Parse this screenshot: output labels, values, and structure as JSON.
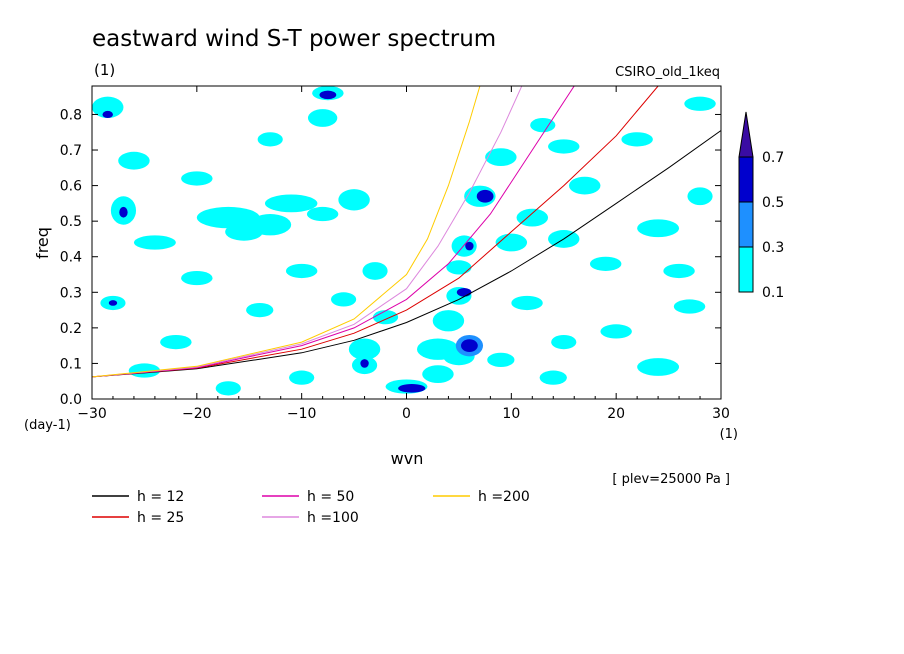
{
  "chart_data": {
    "type": "heatmap",
    "title": "eastward wind S-T power spectrum",
    "subtitle_left": "(1)",
    "subtitle_right": "CSIRO_old_1keq",
    "xlabel": "wvn",
    "ylabel": "freq",
    "x_unit": "(1)",
    "y_unit": "(day-1)",
    "xlim": [
      -30,
      30
    ],
    "ylim": [
      0,
      0.88
    ],
    "x_ticks": [
      -30,
      -20,
      -10,
      0,
      10,
      20,
      30
    ],
    "x_tick_labels": [
      "−30",
      "−20",
      "−10",
      "0",
      "10",
      "20",
      "30"
    ],
    "y_ticks": [
      0.0,
      0.1,
      0.2,
      0.3,
      0.4,
      0.5,
      0.6,
      0.7,
      0.8
    ],
    "y_tick_labels": [
      "0.0",
      "0.1",
      "0.2",
      "0.3",
      "0.4",
      "0.5",
      "0.6",
      "0.7",
      "0.8"
    ],
    "annotation": "[ plev=25000 Pa ]",
    "colorbar": {
      "levels": [
        0.1,
        0.3,
        0.5,
        0.7
      ],
      "labels": [
        "0.1",
        "0.3",
        "0.5",
        "0.7"
      ],
      "colors": [
        "#00ffff",
        "#1e90ff",
        "#0000cd",
        "#3a0ca3"
      ]
    },
    "dispersion_curves": [
      {
        "label": "h = 12",
        "h": 12,
        "color": "#000000",
        "x": [
          -30,
          -20,
          -10,
          -5,
          0,
          5,
          10,
          15,
          20,
          25,
          30
        ],
        "y": [
          0.062,
          0.085,
          0.13,
          0.165,
          0.215,
          0.28,
          0.36,
          0.45,
          0.55,
          0.65,
          0.755
        ]
      },
      {
        "label": "h = 25",
        "h": 25,
        "color": "#dd0000",
        "x": [
          -30,
          -20,
          -10,
          -5,
          0,
          5,
          10,
          15,
          20,
          24
        ],
        "y": [
          0.062,
          0.087,
          0.14,
          0.185,
          0.25,
          0.34,
          0.47,
          0.6,
          0.74,
          0.88
        ]
      },
      {
        "label": "h = 50",
        "h": 50,
        "color": "#dd00aa",
        "x": [
          -30,
          -20,
          -10,
          -5,
          0,
          4,
          8,
          12,
          16
        ],
        "y": [
          0.062,
          0.088,
          0.15,
          0.2,
          0.28,
          0.38,
          0.52,
          0.7,
          0.88
        ]
      },
      {
        "label": "h =100",
        "h": 100,
        "color": "#dd88dd",
        "x": [
          -30,
          -20,
          -10,
          -5,
          0,
          3,
          6,
          9,
          11
        ],
        "y": [
          0.062,
          0.09,
          0.155,
          0.21,
          0.31,
          0.43,
          0.58,
          0.75,
          0.88
        ]
      },
      {
        "label": "h =200",
        "h": 200,
        "color": "#ffcc00",
        "x": [
          -30,
          -20,
          -10,
          -5,
          0,
          2,
          4,
          6,
          7
        ],
        "y": [
          0.062,
          0.092,
          0.16,
          0.225,
          0.35,
          0.45,
          0.6,
          0.78,
          0.88
        ]
      }
    ],
    "contour_patches": [
      {
        "x": -28.5,
        "y": 0.82,
        "rx": 1.5,
        "ry": 0.03,
        "level": 0
      },
      {
        "x": -28.5,
        "y": 0.8,
        "rx": 0.5,
        "ry": 0.01,
        "level": 2
      },
      {
        "x": -26,
        "y": 0.67,
        "rx": 1.5,
        "ry": 0.025,
        "level": 0
      },
      {
        "x": -27,
        "y": 0.53,
        "rx": 1.2,
        "ry": 0.04,
        "level": 0
      },
      {
        "x": -27,
        "y": 0.525,
        "rx": 0.4,
        "ry": 0.015,
        "level": 2
      },
      {
        "x": -28,
        "y": 0.27,
        "rx": 1.2,
        "ry": 0.02,
        "level": 0
      },
      {
        "x": -28,
        "y": 0.27,
        "rx": 0.4,
        "ry": 0.008,
        "level": 2
      },
      {
        "x": -24,
        "y": 0.44,
        "rx": 2,
        "ry": 0.02,
        "level": 0
      },
      {
        "x": -20,
        "y": 0.62,
        "rx": 1.5,
        "ry": 0.02,
        "level": 0
      },
      {
        "x": -17,
        "y": 0.51,
        "rx": 3,
        "ry": 0.03,
        "level": 0
      },
      {
        "x": -15.5,
        "y": 0.47,
        "rx": 1.8,
        "ry": 0.025,
        "level": 0
      },
      {
        "x": -13,
        "y": 0.49,
        "rx": 2,
        "ry": 0.03,
        "level": 0
      },
      {
        "x": -11,
        "y": 0.55,
        "rx": 2.5,
        "ry": 0.025,
        "level": 0
      },
      {
        "x": -8,
        "y": 0.52,
        "rx": 1.5,
        "ry": 0.02,
        "level": 0
      },
      {
        "x": -10,
        "y": 0.36,
        "rx": 1.5,
        "ry": 0.02,
        "level": 0
      },
      {
        "x": -7.5,
        "y": 0.86,
        "rx": 1.5,
        "ry": 0.02,
        "level": 0
      },
      {
        "x": -7.5,
        "y": 0.855,
        "rx": 0.8,
        "ry": 0.012,
        "level": 2
      },
      {
        "x": -13,
        "y": 0.73,
        "rx": 1.2,
        "ry": 0.02,
        "level": 0
      },
      {
        "x": -8,
        "y": 0.79,
        "rx": 1.4,
        "ry": 0.025,
        "level": 0
      },
      {
        "x": -5,
        "y": 0.56,
        "rx": 1.5,
        "ry": 0.03,
        "level": 0
      },
      {
        "x": -3,
        "y": 0.36,
        "rx": 1.2,
        "ry": 0.025,
        "level": 0
      },
      {
        "x": -4,
        "y": 0.14,
        "rx": 1.5,
        "ry": 0.03,
        "level": 0
      },
      {
        "x": -4,
        "y": 0.095,
        "rx": 1.2,
        "ry": 0.025,
        "level": 0
      },
      {
        "x": -4,
        "y": 0.1,
        "rx": 0.4,
        "ry": 0.012,
        "level": 2
      },
      {
        "x": -2,
        "y": 0.23,
        "rx": 1.2,
        "ry": 0.02,
        "level": 0
      },
      {
        "x": 0,
        "y": 0.035,
        "rx": 2,
        "ry": 0.02,
        "level": 0
      },
      {
        "x": 0.5,
        "y": 0.03,
        "rx": 1.3,
        "ry": 0.012,
        "level": 2
      },
      {
        "x": 3,
        "y": 0.07,
        "rx": 1.5,
        "ry": 0.025,
        "level": 0
      },
      {
        "x": 3,
        "y": 0.14,
        "rx": 2,
        "ry": 0.03,
        "level": 0
      },
      {
        "x": 5,
        "y": 0.12,
        "rx": 1.5,
        "ry": 0.025,
        "level": 0
      },
      {
        "x": 6,
        "y": 0.15,
        "rx": 1.3,
        "ry": 0.03,
        "level": 1
      },
      {
        "x": 6,
        "y": 0.15,
        "rx": 0.8,
        "ry": 0.018,
        "level": 2
      },
      {
        "x": 4,
        "y": 0.22,
        "rx": 1.5,
        "ry": 0.03,
        "level": 0
      },
      {
        "x": 5,
        "y": 0.29,
        "rx": 1.2,
        "ry": 0.025,
        "level": 0
      },
      {
        "x": 5.5,
        "y": 0.3,
        "rx": 0.7,
        "ry": 0.012,
        "level": 2
      },
      {
        "x": 5.5,
        "y": 0.43,
        "rx": 1.2,
        "ry": 0.03,
        "level": 0
      },
      {
        "x": 6,
        "y": 0.43,
        "rx": 0.4,
        "ry": 0.012,
        "level": 2
      },
      {
        "x": 7,
        "y": 0.57,
        "rx": 1.5,
        "ry": 0.03,
        "level": 0
      },
      {
        "x": 7.5,
        "y": 0.57,
        "rx": 0.8,
        "ry": 0.018,
        "level": 2
      },
      {
        "x": 5,
        "y": 0.37,
        "rx": 1.2,
        "ry": 0.02,
        "level": 0
      },
      {
        "x": 9,
        "y": 0.68,
        "rx": 1.5,
        "ry": 0.025,
        "level": 0
      },
      {
        "x": 10,
        "y": 0.44,
        "rx": 1.5,
        "ry": 0.025,
        "level": 0
      },
      {
        "x": 11.5,
        "y": 0.27,
        "rx": 1.5,
        "ry": 0.02,
        "level": 0
      },
      {
        "x": 12,
        "y": 0.51,
        "rx": 1.5,
        "ry": 0.025,
        "level": 0
      },
      {
        "x": 15,
        "y": 0.45,
        "rx": 1.5,
        "ry": 0.025,
        "level": 0
      },
      {
        "x": 17,
        "y": 0.6,
        "rx": 1.5,
        "ry": 0.025,
        "level": 0
      },
      {
        "x": 15,
        "y": 0.71,
        "rx": 1.5,
        "ry": 0.02,
        "level": 0
      },
      {
        "x": 13,
        "y": 0.77,
        "rx": 1.2,
        "ry": 0.02,
        "level": 0
      },
      {
        "x": 19,
        "y": 0.38,
        "rx": 1.5,
        "ry": 0.02,
        "level": 0
      },
      {
        "x": 20,
        "y": 0.19,
        "rx": 1.5,
        "ry": 0.02,
        "level": 0
      },
      {
        "x": 24,
        "y": 0.48,
        "rx": 2,
        "ry": 0.025,
        "level": 0
      },
      {
        "x": 26,
        "y": 0.36,
        "rx": 1.5,
        "ry": 0.02,
        "level": 0
      },
      {
        "x": 28,
        "y": 0.57,
        "rx": 1.2,
        "ry": 0.025,
        "level": 0
      },
      {
        "x": 27,
        "y": 0.26,
        "rx": 1.5,
        "ry": 0.02,
        "level": 0
      },
      {
        "x": 24,
        "y": 0.09,
        "rx": 2,
        "ry": 0.025,
        "level": 0
      },
      {
        "x": 28,
        "y": 0.83,
        "rx": 1.5,
        "ry": 0.02,
        "level": 0
      },
      {
        "x": 22,
        "y": 0.73,
        "rx": 1.5,
        "ry": 0.02,
        "level": 0
      },
      {
        "x": -22,
        "y": 0.16,
        "rx": 1.5,
        "ry": 0.02,
        "level": 0
      },
      {
        "x": -25,
        "y": 0.08,
        "rx": 1.5,
        "ry": 0.02,
        "level": 0
      },
      {
        "x": -17,
        "y": 0.03,
        "rx": 1.2,
        "ry": 0.02,
        "level": 0
      },
      {
        "x": -10,
        "y": 0.06,
        "rx": 1.2,
        "ry": 0.02,
        "level": 0
      },
      {
        "x": -14,
        "y": 0.25,
        "rx": 1.3,
        "ry": 0.02,
        "level": 0
      },
      {
        "x": -20,
        "y": 0.34,
        "rx": 1.5,
        "ry": 0.02,
        "level": 0
      },
      {
        "x": -6,
        "y": 0.28,
        "rx": 1.2,
        "ry": 0.02,
        "level": 0
      },
      {
        "x": 9,
        "y": 0.11,
        "rx": 1.3,
        "ry": 0.02,
        "level": 0
      },
      {
        "x": 14,
        "y": 0.06,
        "rx": 1.3,
        "ry": 0.02,
        "level": 0
      },
      {
        "x": 15,
        "y": 0.16,
        "rx": 1.2,
        "ry": 0.02,
        "level": 0
      }
    ]
  }
}
